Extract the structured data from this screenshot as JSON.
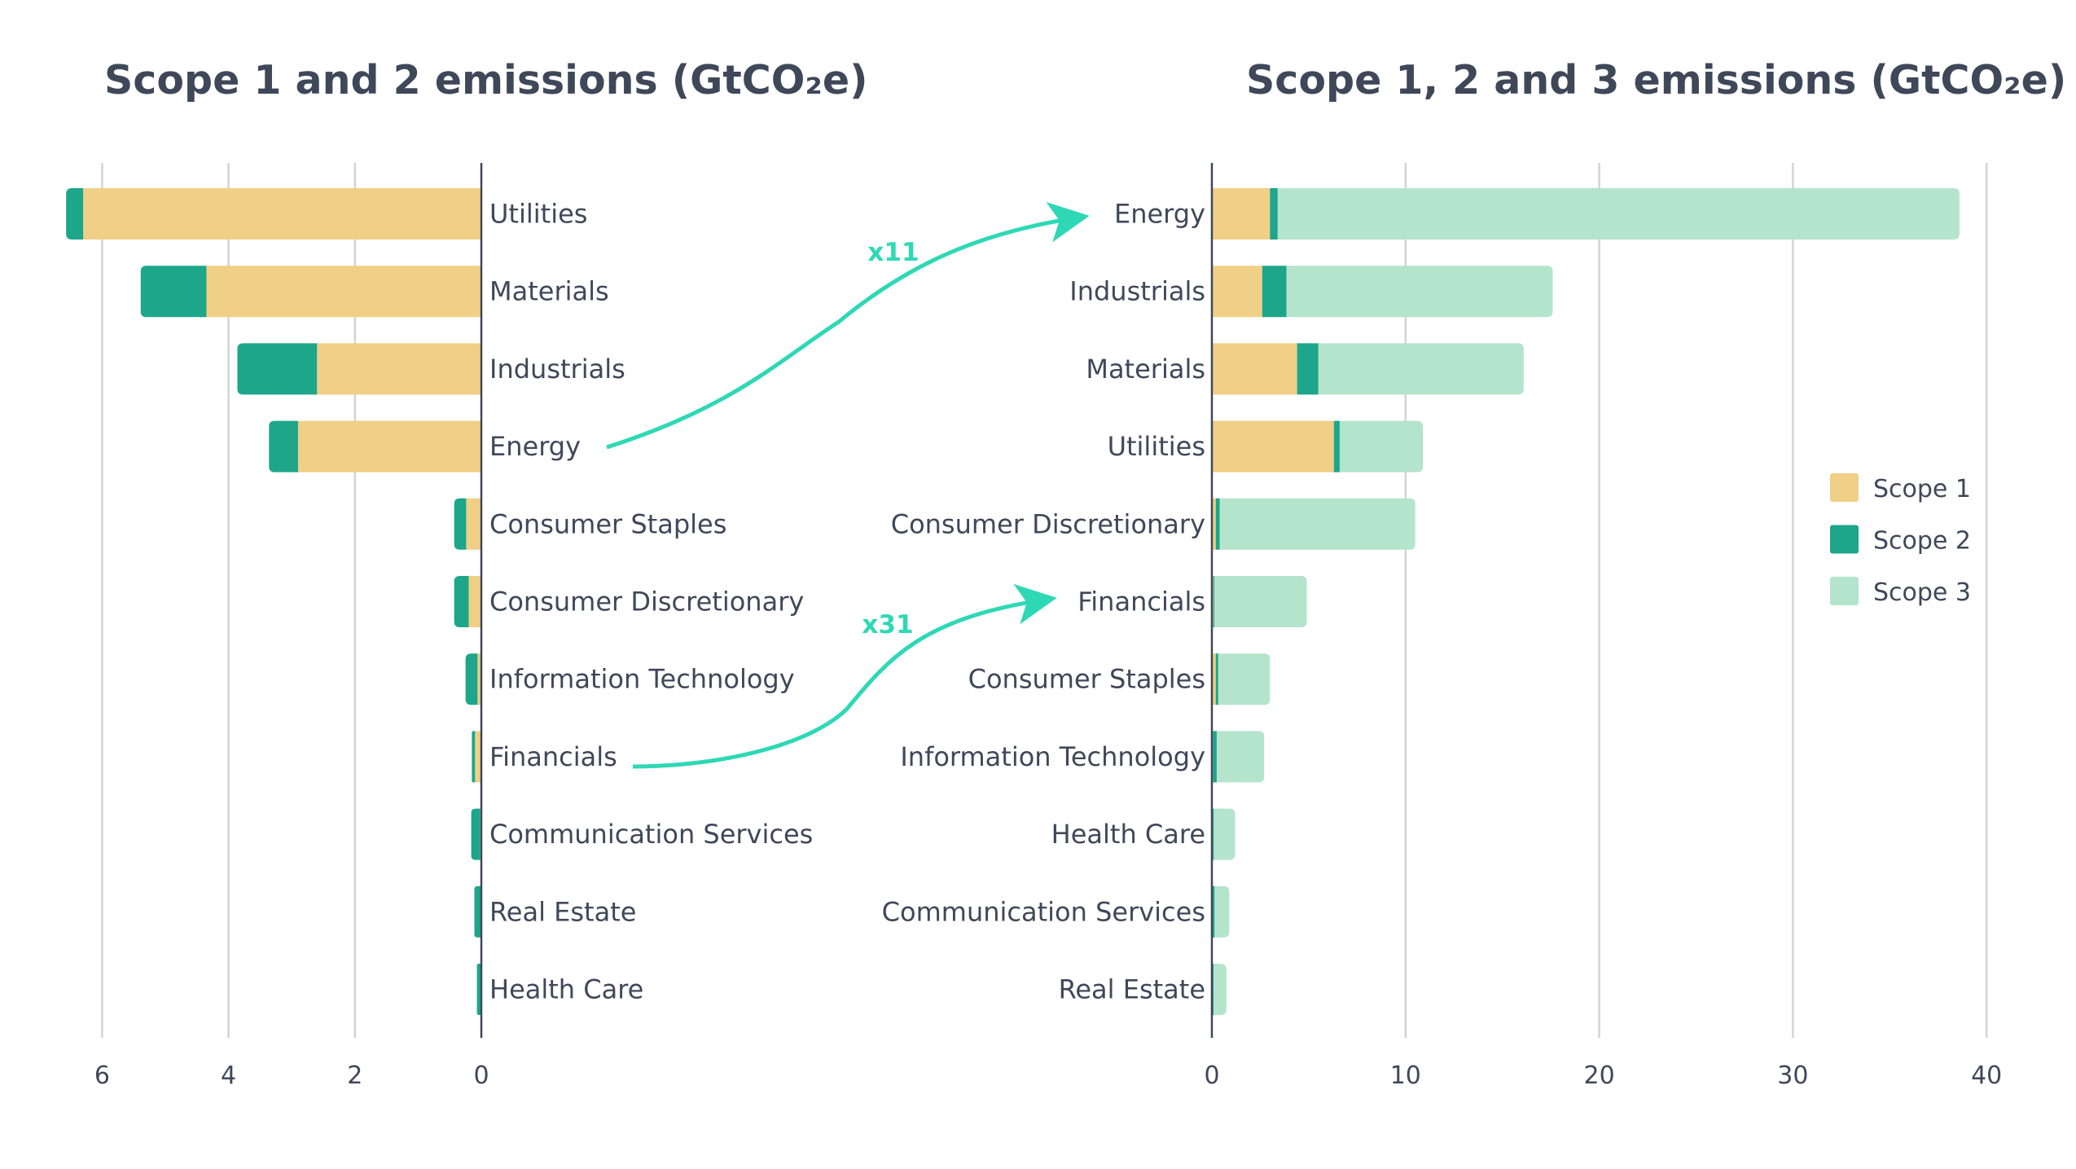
{
  "colors": {
    "scope1": "#f0cf87",
    "scope2": "#1da68a",
    "scope3": "#b4e4cc",
    "annotation": "#2fd8b5",
    "text": "#3f4859",
    "grid": "#d3d3d3"
  },
  "legend": {
    "position": "right",
    "items": [
      "Scope 1",
      "Scope 2",
      "Scope 3"
    ]
  },
  "annotations": [
    {
      "label": "x11",
      "from": "Energy",
      "to": "Energy"
    },
    {
      "label": "x31",
      "from": "Financials",
      "to": "Financials"
    }
  ],
  "chart_data": [
    {
      "type": "bar",
      "orientation": "horizontal",
      "direction": "right-to-left",
      "stacked": true,
      "title": "Scope 1 and 2 emissions (GtCO₂e)",
      "xlabel": "",
      "ylabel": "",
      "xlim": [
        0,
        6.6
      ],
      "xticks": [
        6,
        4,
        2,
        0
      ],
      "grid": true,
      "categories": [
        "Utilities",
        "Materials",
        "Industrials",
        "Energy",
        "Consumer Staples",
        "Consumer Discretionary",
        "Information Technology",
        "Financials",
        "Communication Services",
        "Real Estate",
        "Health Care"
      ],
      "series": [
        {
          "name": "Scope 1",
          "values": [
            6.3,
            4.35,
            2.6,
            2.9,
            0.24,
            0.2,
            0.06,
            0.1,
            0.02,
            0.01,
            0.01
          ]
        },
        {
          "name": "Scope 2",
          "values": [
            0.27,
            1.04,
            1.26,
            0.46,
            0.19,
            0.23,
            0.19,
            0.05,
            0.14,
            0.1,
            0.06
          ]
        }
      ]
    },
    {
      "type": "bar",
      "orientation": "horizontal",
      "direction": "left-to-right",
      "stacked": true,
      "title": "Scope 1, 2 and 3 emissions (GtCO₂e)",
      "xlabel": "",
      "ylabel": "",
      "xlim": [
        0,
        40
      ],
      "xticks": [
        0,
        10,
        20,
        30,
        40
      ],
      "grid": true,
      "categories": [
        "Energy",
        "Industrials",
        "Materials",
        "Utilities",
        "Consumer Discretionary",
        "Financials",
        "Consumer Staples",
        "Information Technology",
        "Health Care",
        "Communication Services",
        "Real Estate"
      ],
      "series": [
        {
          "name": "Scope 1",
          "values": [
            3.0,
            2.6,
            4.4,
            6.3,
            0.2,
            0.08,
            0.2,
            0.06,
            0.05,
            0.02,
            0.01
          ]
        },
        {
          "name": "Scope 2",
          "values": [
            0.4,
            1.25,
            1.1,
            0.3,
            0.2,
            0.05,
            0.13,
            0.19,
            0.05,
            0.12,
            0.08
          ]
        },
        {
          "name": "Scope 3",
          "values": [
            35.2,
            13.75,
            10.6,
            4.3,
            10.1,
            4.77,
            2.67,
            2.45,
            1.1,
            0.76,
            0.66
          ]
        }
      ]
    }
  ]
}
